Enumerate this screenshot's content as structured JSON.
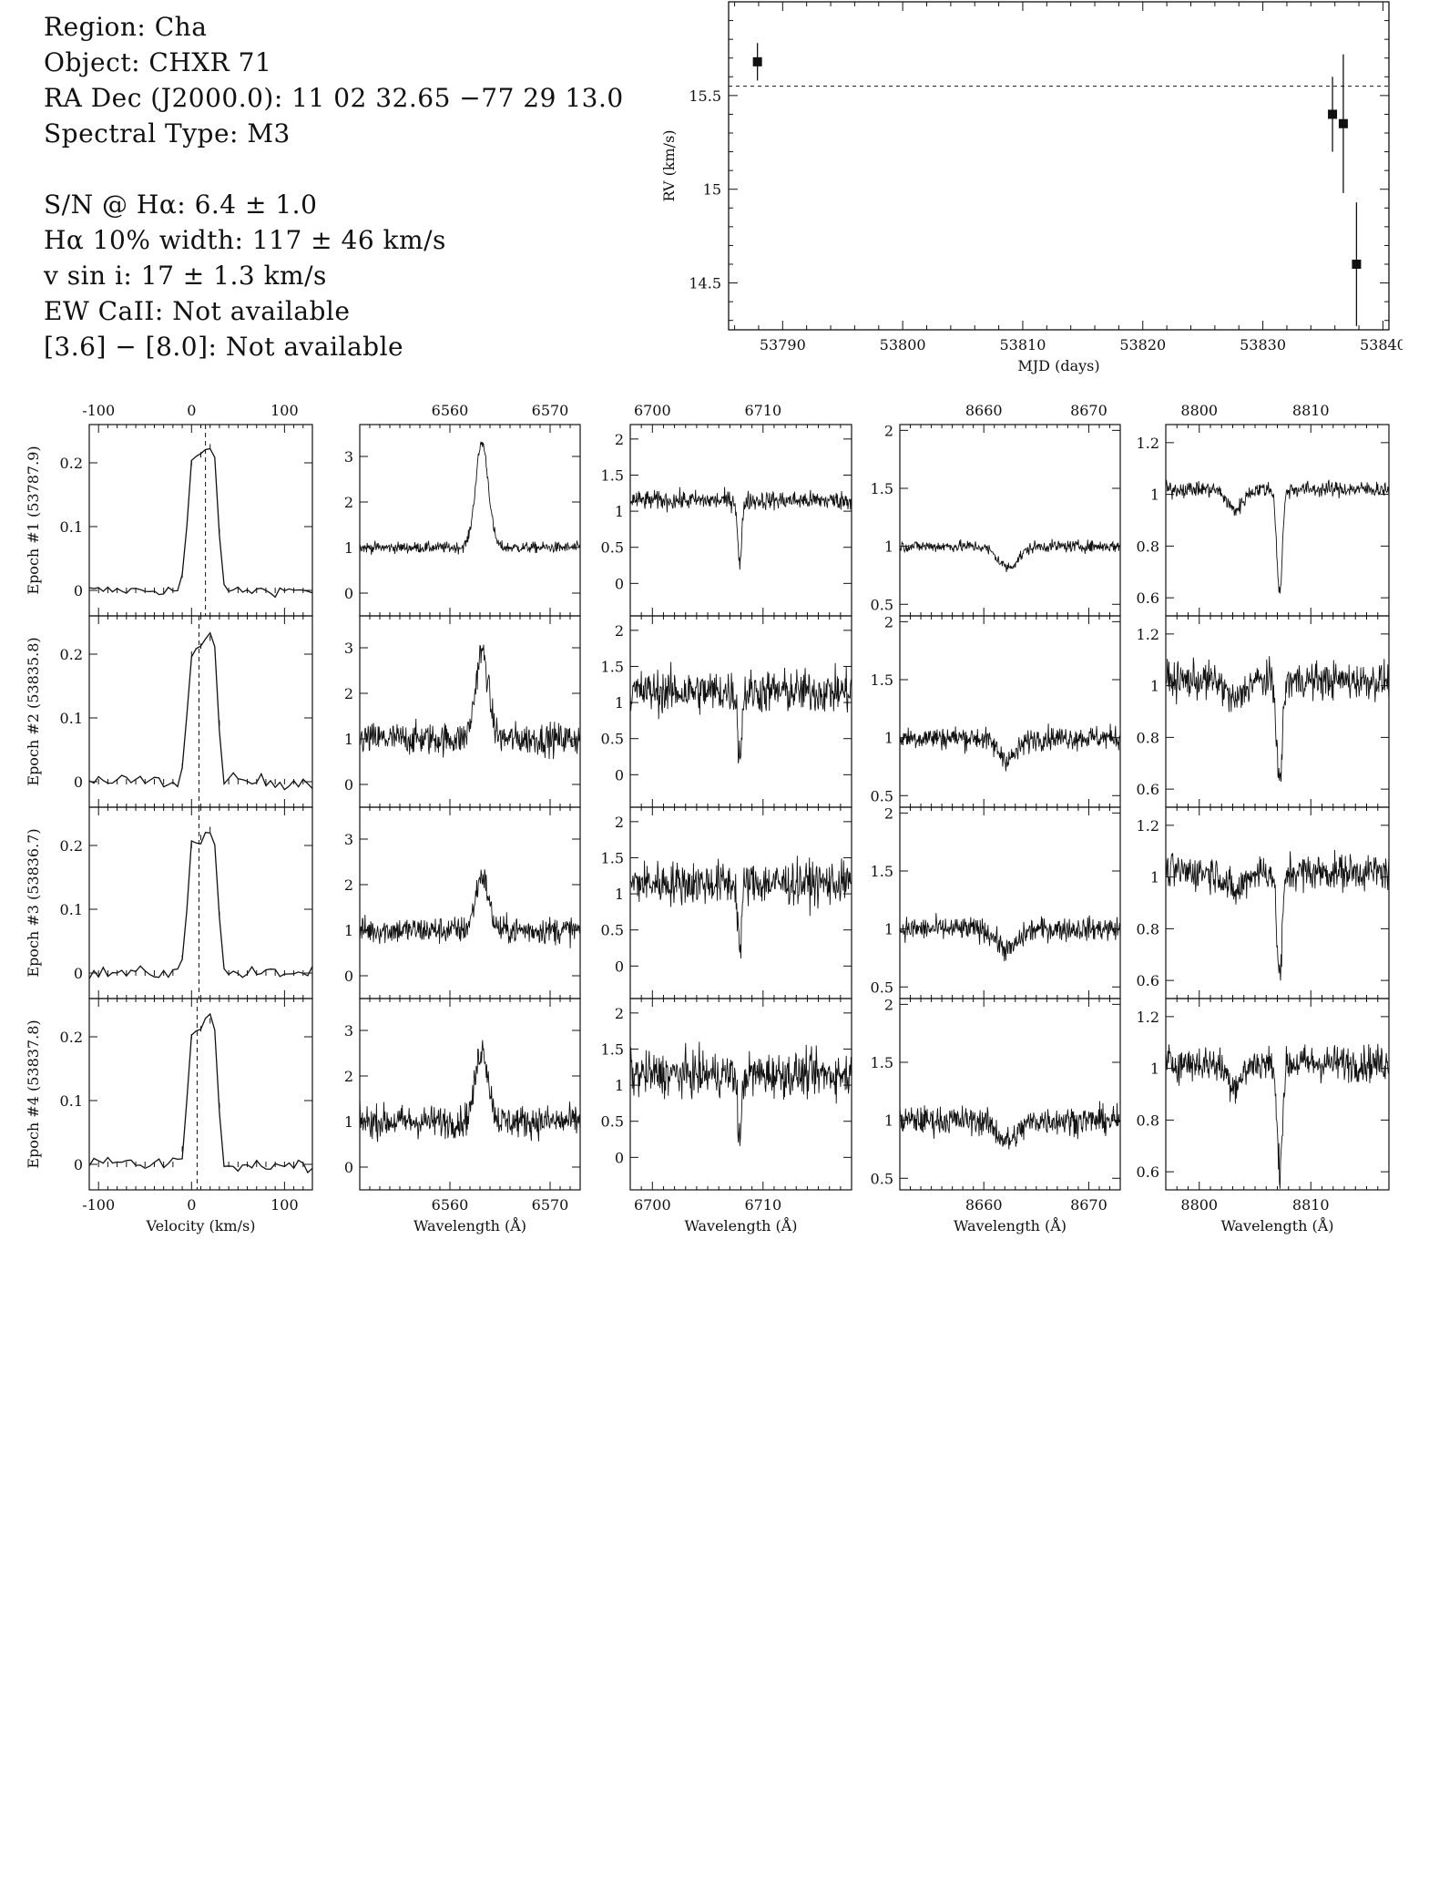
{
  "header": {
    "region": "Region: Cha",
    "object": "Object: CHXR 71",
    "radec": "RA Dec (J2000.0): 11 02 32.65 −77 29 13.0",
    "sptype": "Spectral Type: M3",
    "sn": "S/N @ Hα: 6.4 ± 1.0",
    "width": "Hα 10% width: 117 ± 46 km/s",
    "vsini": "v sin i: 17 ± 1.3 km/s",
    "ewcaii": "EW CaII: Not available",
    "color": "[3.6] − [8.0]: Not available"
  },
  "chart_data": [
    {
      "type": "scatter",
      "xlabel": "MJD (days)",
      "ylabel": "RV (km/s)",
      "xlim": [
        53785.5,
        53840.5
      ],
      "ylim": [
        14.25,
        16.0
      ],
      "xticks": [
        53790,
        53800,
        53810,
        53820,
        53830,
        53840
      ],
      "yticks": [
        14.5,
        15,
        15.5
      ],
      "mean_line": 15.55,
      "points": [
        {
          "x": 53787.9,
          "y": 15.68,
          "err": 0.1
        },
        {
          "x": 53835.8,
          "y": 15.4,
          "err": 0.2
        },
        {
          "x": 53836.7,
          "y": 15.35,
          "err": 0.37
        },
        {
          "x": 53837.8,
          "y": 14.6,
          "err": 0.33
        }
      ]
    },
    {
      "type": "line",
      "description_grid": "spectral panels",
      "epochs": [
        {
          "label": "Epoch #1 (53787.9)"
        },
        {
          "label": "Epoch #2 (53835.8)"
        },
        {
          "label": "Epoch #3 (53836.7)"
        },
        {
          "label": "Epoch #4 (53837.8)"
        }
      ],
      "columns": [
        {
          "xlabel": "Velocity (km/s)",
          "xlim": [
            -110,
            130
          ],
          "xticks": [
            -100,
            0,
            100
          ],
          "ylim": [
            -0.04,
            0.26
          ],
          "yticks": [
            0,
            0.1,
            0.2
          ],
          "ytick_labels": [
            "0",
            "0.1",
            "0.2"
          ],
          "vline": [
            15,
            8,
            8,
            6
          ]
        },
        {
          "xlabel": "Wavelength (Å)",
          "xlim": [
            6551,
            6573
          ],
          "xticks": [
            6560,
            6570
          ],
          "ylim": [
            -0.5,
            3.7
          ],
          "yticks": [
            0,
            1,
            2,
            3
          ],
          "ytick_labels": [
            "0",
            "1",
            "2",
            "3"
          ]
        },
        {
          "xlabel": "Wavelength (Å)",
          "xlim": [
            6698,
            6718
          ],
          "xticks": [
            6700,
            6710
          ],
          "ylim": [
            -0.45,
            2.2
          ],
          "yticks": [
            0,
            0.5,
            1,
            1.5,
            2
          ],
          "ytick_labels": [
            "0",
            "0.5",
            "1",
            "1.5",
            "2"
          ]
        },
        {
          "xlabel": "Wavelength (Å)",
          "xlim": [
            8652,
            8673
          ],
          "xticks": [
            8660,
            8670
          ],
          "ylim": [
            0.4,
            2.05
          ],
          "yticks": [
            0.5,
            1,
            1.5,
            2
          ],
          "ytick_labels": [
            "0.5",
            "1",
            "1.5",
            "2"
          ]
        },
        {
          "xlabel": "Wavelength (Å)",
          "xlim": [
            8797,
            8817
          ],
          "xticks": [
            8800,
            8810
          ],
          "ylim": [
            0.53,
            1.27
          ],
          "yticks": [
            0.6,
            0.8,
            1,
            1.2
          ],
          "ytick_labels": [
            "0.6",
            "0.8",
            "1",
            "1.2"
          ]
        }
      ]
    }
  ]
}
